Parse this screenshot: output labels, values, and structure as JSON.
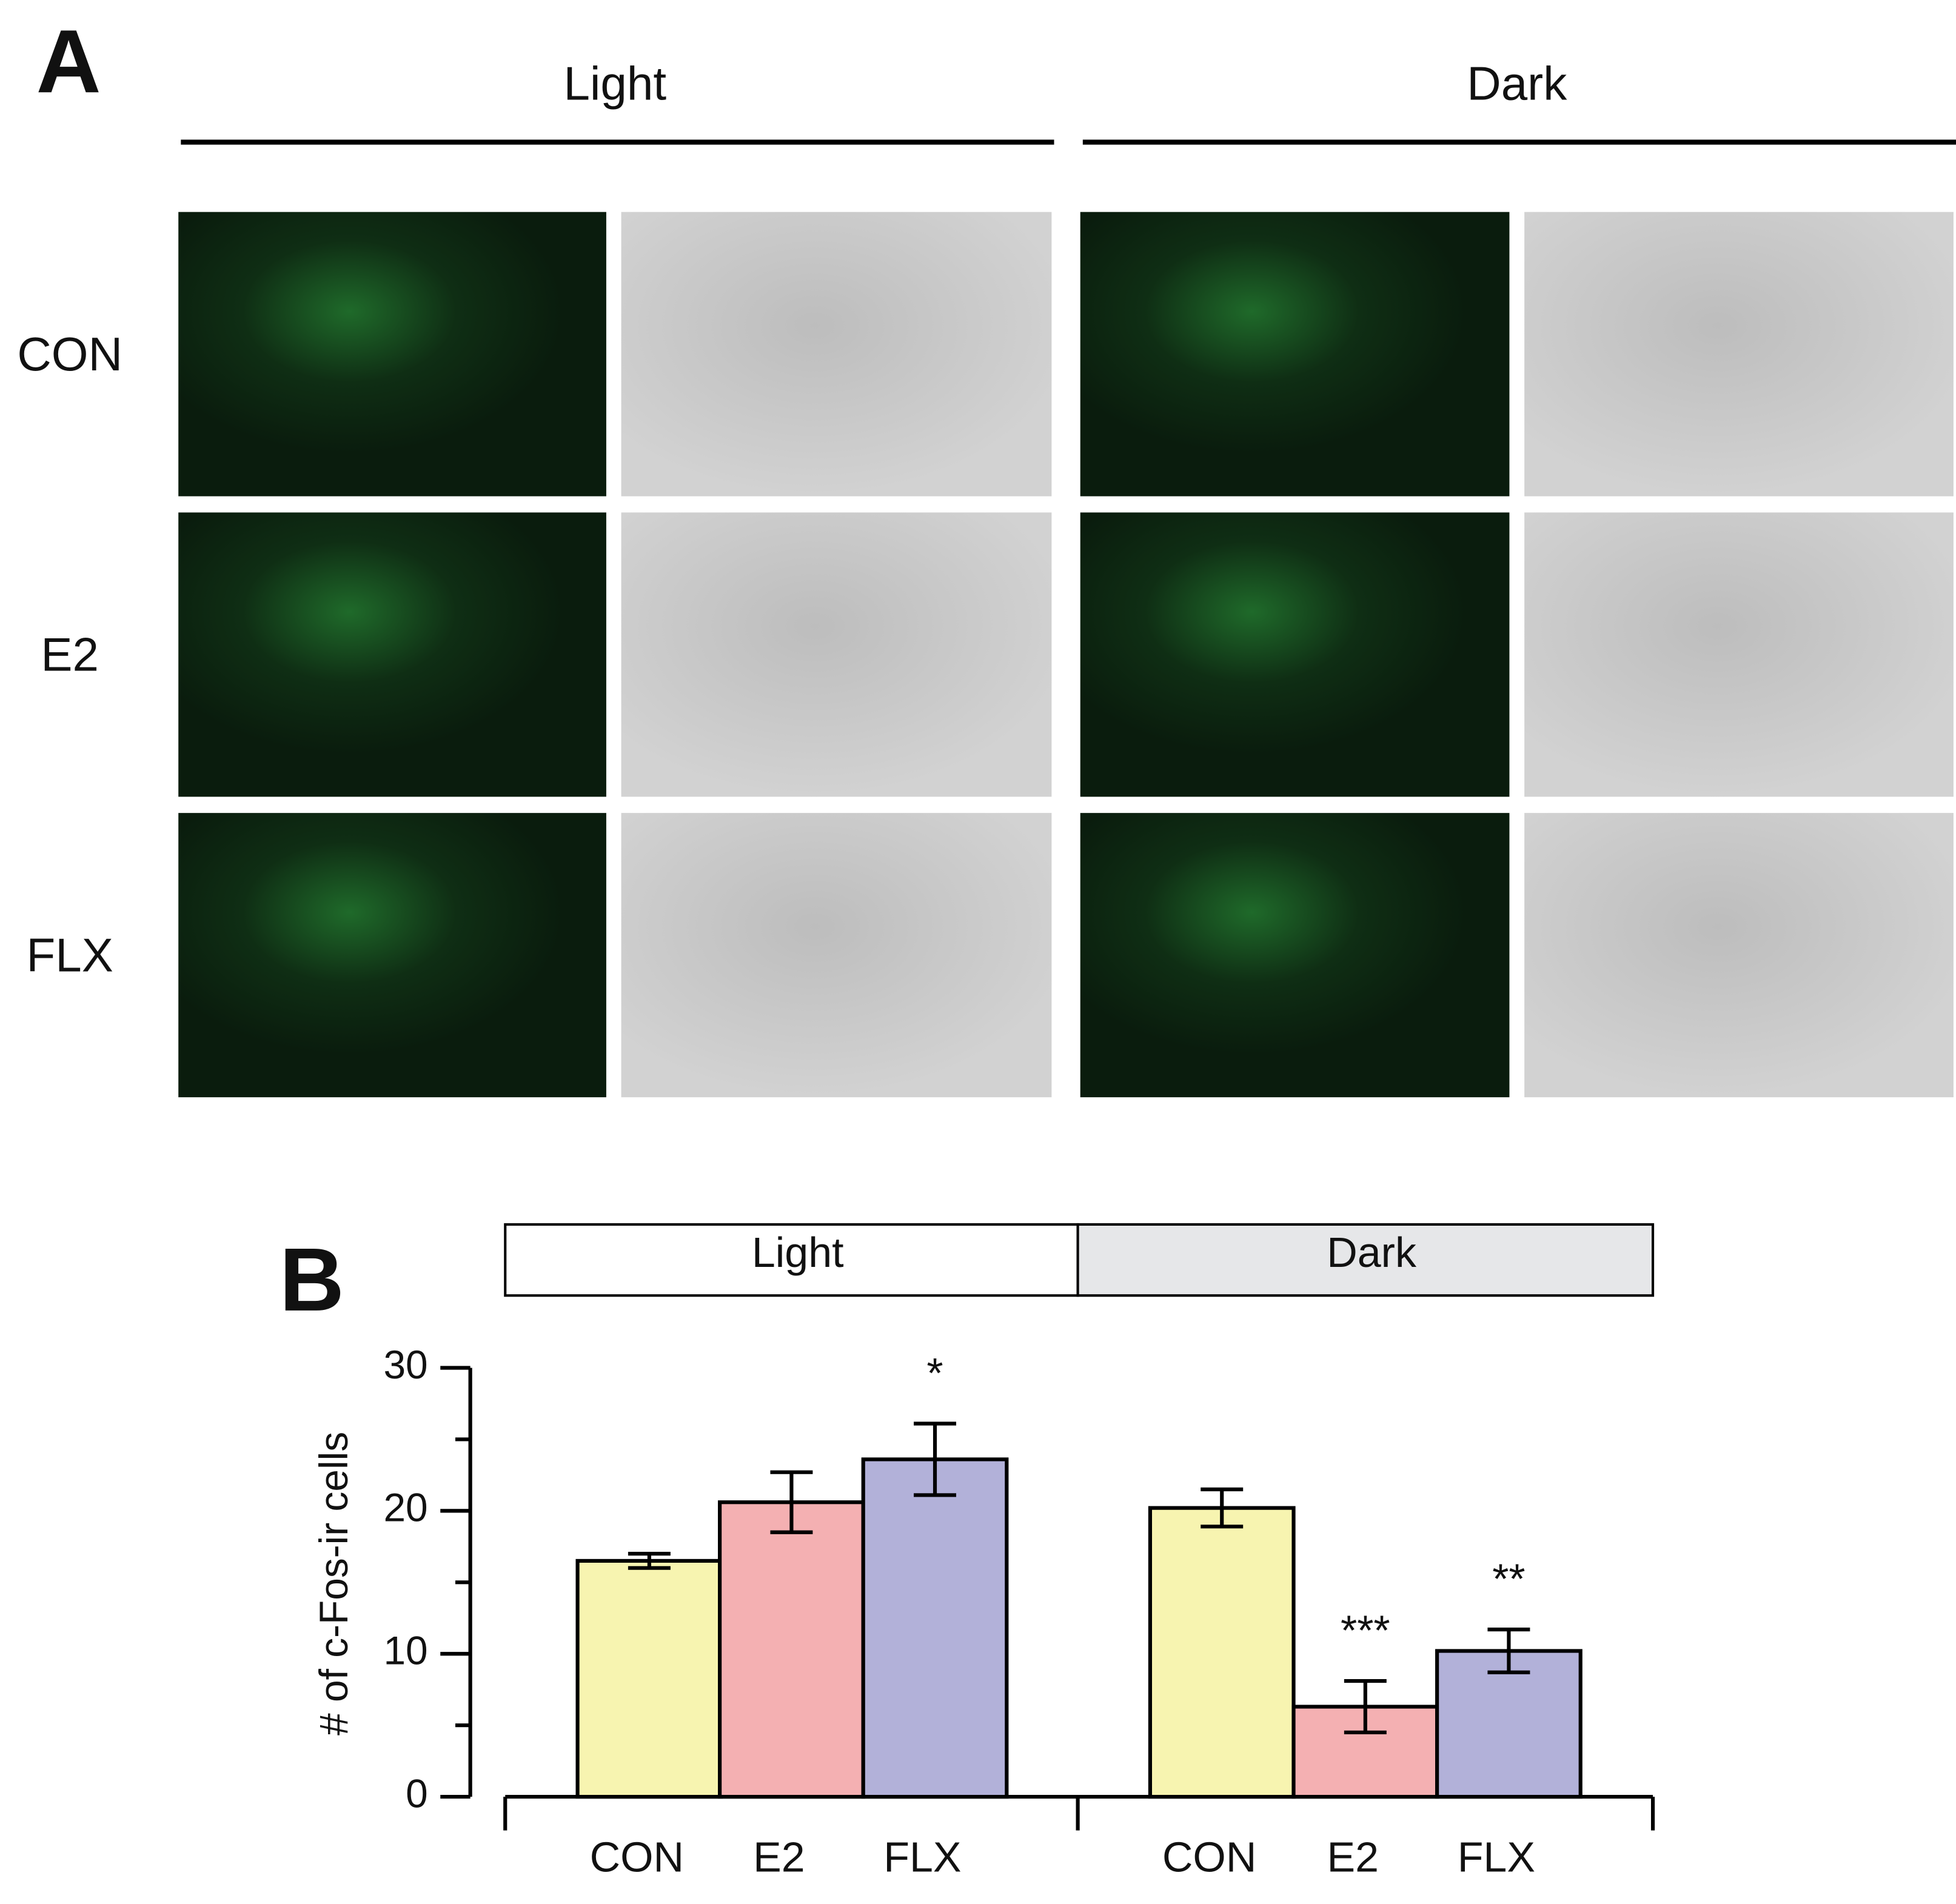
{
  "panel_a": {
    "label": "A",
    "columns": [
      "Light",
      "Dark"
    ],
    "rows": [
      "CON",
      "E2",
      "FLX"
    ]
  },
  "chart_data": {
    "type": "bar",
    "panel_label": "B",
    "groups": [
      "Light",
      "Dark"
    ],
    "ylabel": "# of c-Fos-ir cells",
    "categories": [
      "CON",
      "E2",
      "FLX",
      "CON",
      "E2",
      "FLX"
    ],
    "values": [
      16.5,
      20.6,
      23.6,
      20.2,
      6.3,
      10.2
    ],
    "errors": [
      0.5,
      2.1,
      2.5,
      1.3,
      1.8,
      1.5
    ],
    "annotations": [
      null,
      null,
      "*",
      null,
      "***",
      "**"
    ],
    "colors": [
      "#f7f4b0",
      "#f4b0b2",
      "#b2b1d9",
      "#f7f4b0",
      "#f4b0b2",
      "#b2b1d9"
    ],
    "ylim": [
      0,
      30
    ],
    "yticks": [
      0,
      10,
      20,
      30
    ],
    "yminor_ticks": [
      5,
      15,
      25
    ]
  }
}
